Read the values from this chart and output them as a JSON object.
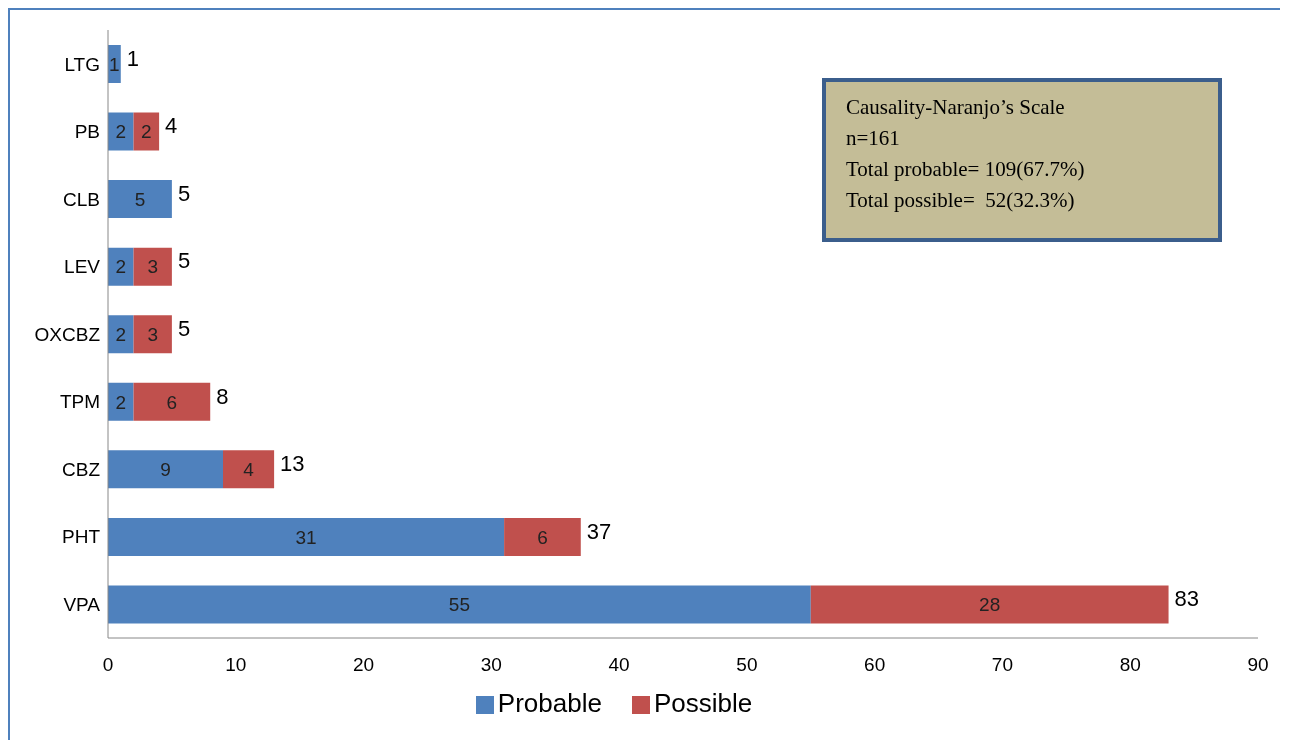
{
  "chart_data": {
    "type": "bar",
    "orientation": "horizontal",
    "stacked": true,
    "categories": [
      "LTG",
      "PB",
      "CLB",
      "LEV",
      "OXCBZ",
      "TPM",
      "CBZ",
      "PHT",
      "VPA"
    ],
    "series": [
      {
        "name": "Probable",
        "color": "#4f81bd",
        "values": [
          1,
          2,
          5,
          2,
          2,
          2,
          9,
          31,
          55
        ]
      },
      {
        "name": "Possible",
        "color": "#c0504d",
        "values": [
          null,
          2,
          null,
          3,
          3,
          6,
          4,
          6,
          28
        ]
      }
    ],
    "totals": [
      "1",
      "4",
      "5",
      "5",
      "5",
      "8",
      "13",
      "37",
      "83"
    ],
    "data_labels": true,
    "xlim": [
      0,
      90
    ],
    "xticks": [
      0,
      10,
      20,
      30,
      40,
      50,
      60,
      70,
      80,
      90
    ],
    "grid": false,
    "legend": "bottom",
    "annotations": [
      "Causality-Naranjo’s Scale",
      "n=161",
      "Total probable= 109(67.7%)",
      "Total possible=  52(32.3%)"
    ]
  }
}
